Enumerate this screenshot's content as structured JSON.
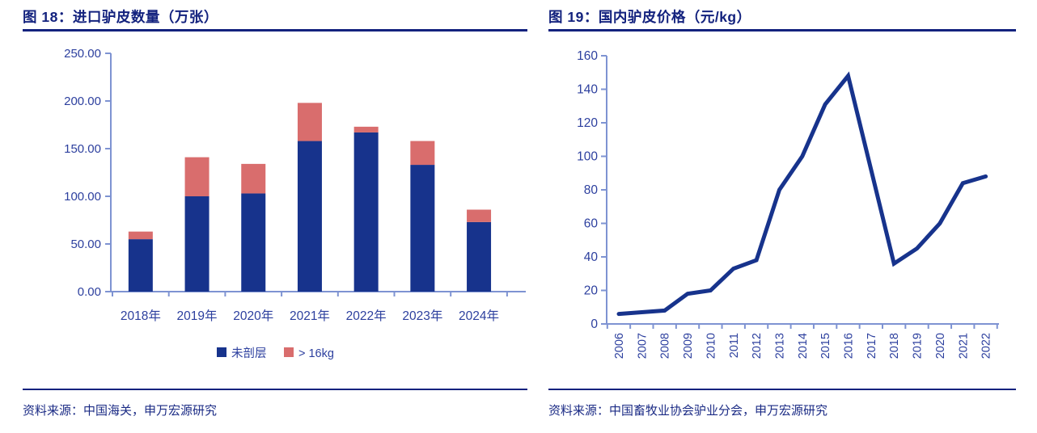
{
  "page": {
    "left_figure": {
      "title": "图 18：进口驴皮数量（万张）",
      "source": "资料来源：中国海关，申万宏源研究"
    },
    "right_figure": {
      "title": "图 19：国内驴皮价格（元/kg）",
      "source": "资料来源：中国畜牧业协会驴业分会，申万宏源研究"
    }
  },
  "colors": {
    "title_navy": "#13227E",
    "bar_blue": "#17338C",
    "bar_pink": "#D96D6D",
    "line_navy": "#17338C",
    "axis_light_blue": "#7E93D2",
    "tick_label_blue": "#2C3F9E",
    "source_text_blue": "#1B2B85"
  },
  "chart_data": [
    {
      "type": "bar",
      "stacked": true,
      "title": "图 18：进口驴皮数量（万张）",
      "categories": [
        "2018年",
        "2019年",
        "2020年",
        "2021年",
        "2022年",
        "2023年",
        "2024年"
      ],
      "series": [
        {
          "name": "未剖层",
          "color": "#17338C",
          "values": [
            55,
            100,
            103,
            158,
            167,
            133,
            73
          ]
        },
        {
          "name": "> 16kg",
          "color": "#D96D6D",
          "values": [
            8,
            41,
            31,
            40,
            6,
            25,
            13
          ]
        }
      ],
      "stack_totals": [
        63,
        141,
        134,
        198,
        173,
        158,
        86
      ],
      "ylim": [
        0,
        250
      ],
      "ytick_labels": [
        "0.00",
        "50.00",
        "100.00",
        "150.00",
        "200.00",
        "250.00"
      ],
      "xlabel": "",
      "ylabel": "",
      "grid": false,
      "legend_position": "bottom"
    },
    {
      "type": "line",
      "title": "图 19：国内驴皮价格（元/kg）",
      "x": [
        "2006",
        "2007",
        "2008",
        "2009",
        "2010",
        "2011",
        "2012",
        "2013",
        "2014",
        "2015",
        "2016",
        "2017",
        "2018",
        "2019",
        "2020",
        "2021",
        "2022"
      ],
      "values": [
        6,
        7,
        8,
        18,
        20,
        33,
        38,
        80,
        100,
        131,
        148,
        92,
        36,
        45,
        60,
        84,
        88
      ],
      "ylim": [
        0,
        160
      ],
      "ytick_labels": [
        "0",
        "20",
        "40",
        "60",
        "80",
        "100",
        "120",
        "140",
        "160"
      ],
      "xlabel": "",
      "ylabel": "",
      "grid": false,
      "legend_position": "none"
    }
  ]
}
